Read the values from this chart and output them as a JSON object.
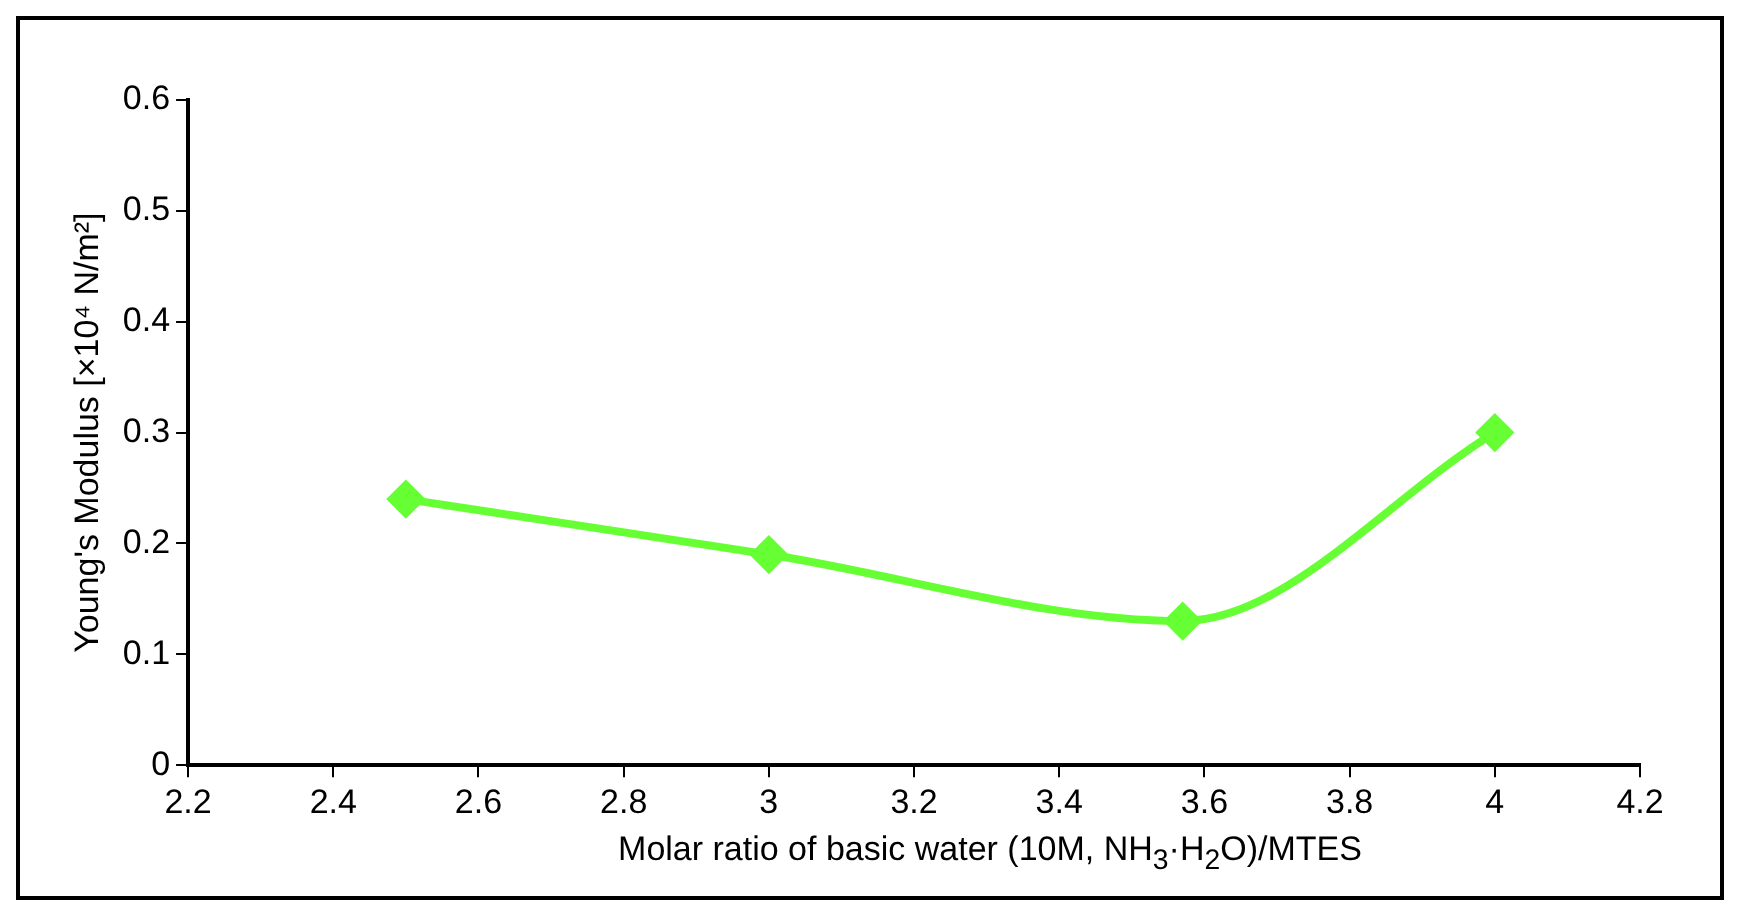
{
  "chart_data": {
    "type": "line",
    "xlabel": "Molar ratio of basic water (10M, NH$_{3}$·H$_{2}$O)/MTES",
    "ylabel": "Young's Modulus [×10⁴ N/m²]",
    "x": [
      2.5,
      3,
      3.57,
      4
    ],
    "series": [
      {
        "color": "#66ff33",
        "values": [
          0.24,
          0.19,
          0.13,
          0.3
        ]
      }
    ],
    "xlim": [
      2.2,
      4.2
    ],
    "xticks": [
      2.2,
      2.4,
      2.6,
      2.8,
      3,
      3.2,
      3.4,
      3.6,
      3.8,
      4,
      4.2
    ],
    "ylim": [
      0,
      0.6
    ],
    "yticks": [
      0,
      0.1,
      0.2,
      0.3,
      0.4,
      0.5,
      0.6
    ],
    "grid": false,
    "legend": false,
    "marker": "diamond",
    "line_style": "solid"
  }
}
